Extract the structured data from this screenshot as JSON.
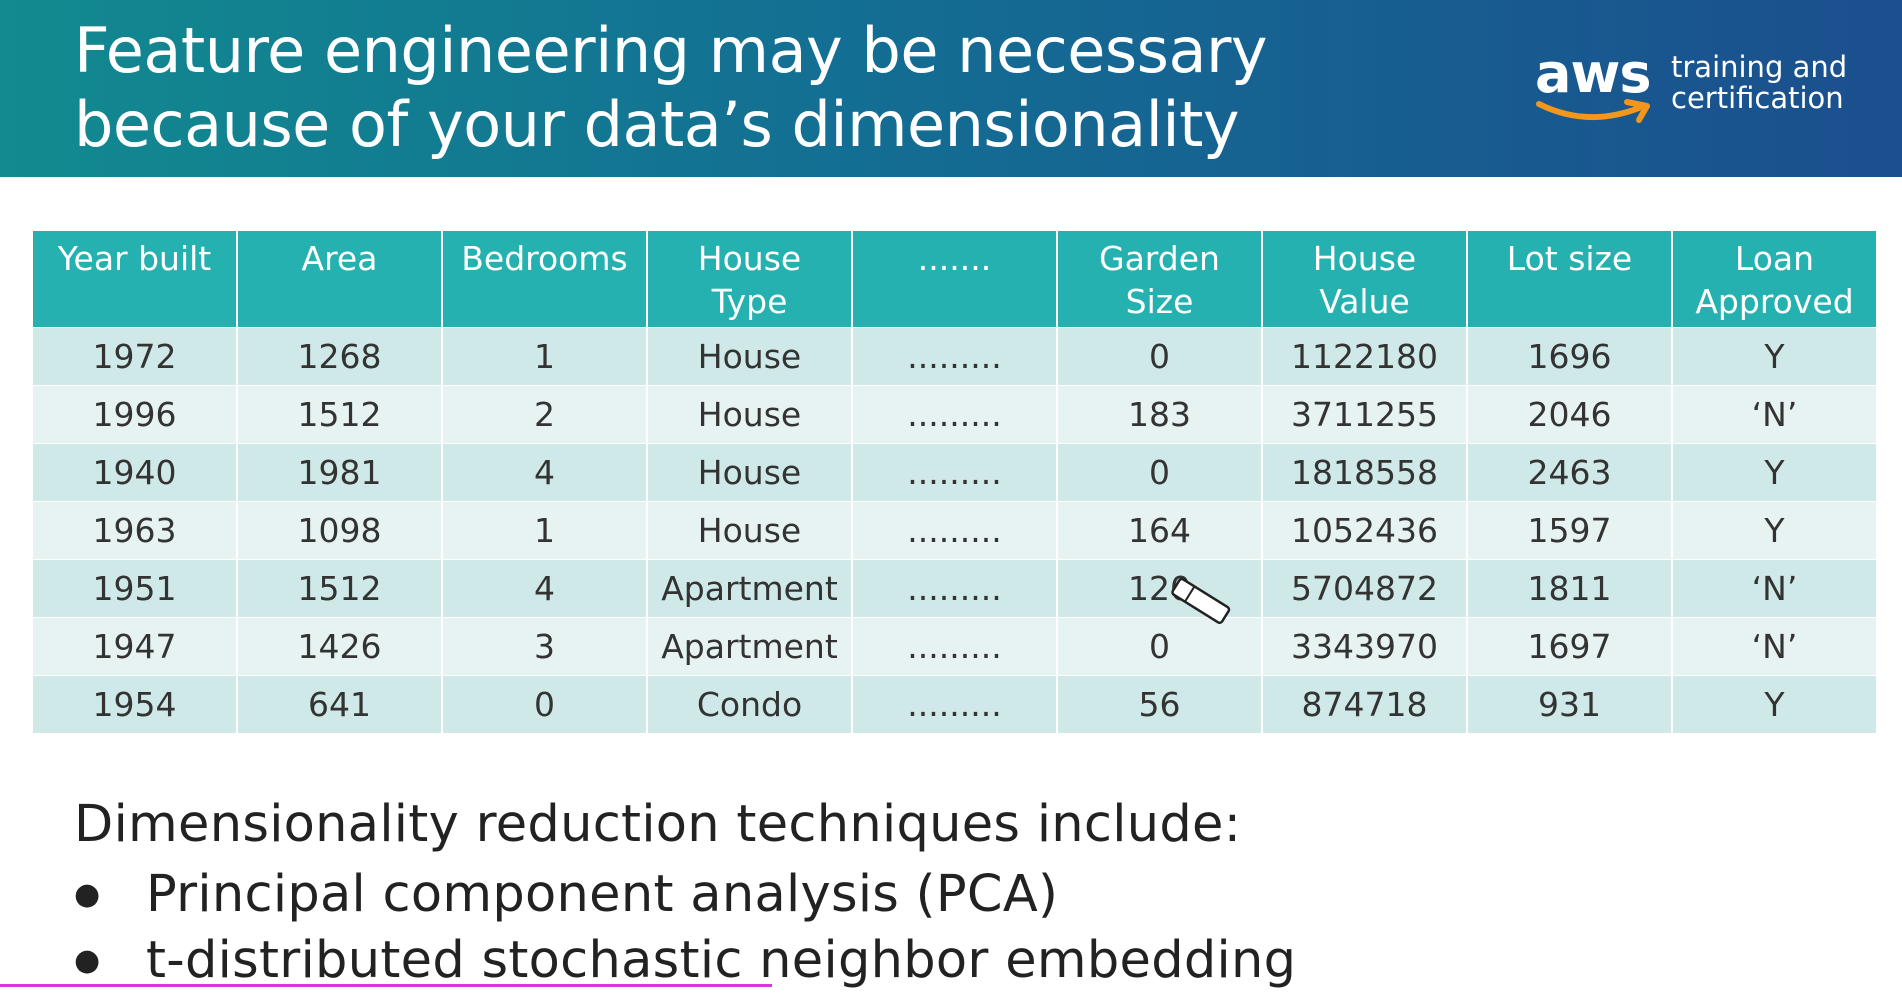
{
  "slide": {
    "title_lines": [
      "Feature engineering may be necessary",
      "because of your data’s dimensionality"
    ]
  },
  "logo": {
    "brand": "aws",
    "tagline_lines": [
      "training and",
      "certification"
    ],
    "smile_color": "#f3961c"
  },
  "table": {
    "headers": [
      "Year built",
      "Area",
      "Bedrooms",
      "House\nType",
      ".......",
      "Garden\nSize",
      "House\nValue",
      "Lot size",
      "Loan\nApproved"
    ],
    "rows": [
      [
        "1972",
        "1268",
        "1",
        "House",
        ".........",
        "0",
        "1122180",
        "1696",
        "Y"
      ],
      [
        "1996",
        "1512",
        "2",
        "House",
        ".........",
        "183",
        "3711255",
        "2046",
        "‘N’"
      ],
      [
        "1940",
        "1981",
        "4",
        "House",
        ".........",
        "0",
        "1818558",
        "2463",
        "Y"
      ],
      [
        "1963",
        "1098",
        "1",
        "House",
        ".........",
        "164",
        "1052436",
        "1597",
        "Y"
      ],
      [
        "1951",
        "1512",
        "4",
        "Apartment",
        ".........",
        "120",
        "5704872",
        "1811",
        "‘N’"
      ],
      [
        "1947",
        "1426",
        "3",
        "Apartment",
        ".........",
        "0",
        "3343970",
        "1697",
        "‘N’"
      ],
      [
        "1954",
        "641",
        "0",
        "Condo",
        ".........",
        "56",
        "874718",
        "931",
        "Y"
      ]
    ]
  },
  "body": {
    "intro": "Dimensionality reduction techniques include:",
    "bullets": [
      "Principal component analysis (PCA)",
      "t-distributed stochastic neighbor embedding"
    ]
  },
  "colors": {
    "header_bg": "#136e93",
    "table_header": "#26b1b1",
    "row_odd": "#cfe8e8",
    "row_even": "#e7f3f3"
  },
  "icons": {
    "bullet": "bullet-dot-icon",
    "pointer": "eraser-pointer-icon"
  }
}
